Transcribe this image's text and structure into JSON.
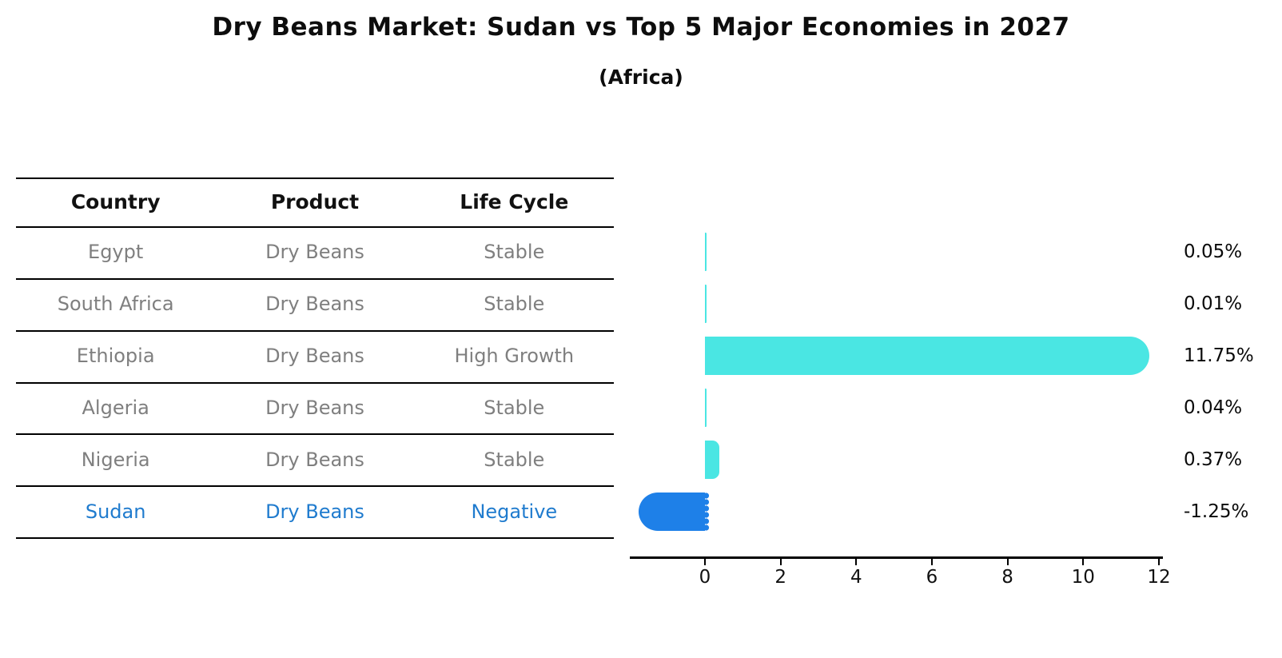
{
  "title": "Dry Beans Market: Sudan vs Top 5 Major Economies in 2027",
  "subtitle": "(Africa)",
  "table": {
    "headers": [
      "Country",
      "Product",
      "Life Cycle"
    ],
    "rows": [
      {
        "country": "Egypt",
        "product": "Dry Beans",
        "life_cycle": "Stable",
        "highlight": false
      },
      {
        "country": "South Africa",
        "product": "Dry Beans",
        "life_cycle": "Stable",
        "highlight": false
      },
      {
        "country": "Ethiopia",
        "product": "Dry Beans",
        "life_cycle": "High Growth",
        "highlight": false
      },
      {
        "country": "Algeria",
        "product": "Dry Beans",
        "life_cycle": "Stable",
        "highlight": false
      },
      {
        "country": "Nigeria",
        "product": "Dry Beans",
        "life_cycle": "Stable",
        "highlight": false
      },
      {
        "country": "Sudan",
        "product": "Dry Beans",
        "life_cycle": "Negative",
        "highlight": true
      }
    ]
  },
  "chart_data": {
    "type": "bar",
    "orientation": "horizontal",
    "title": "Dry Beans Market: Sudan vs Top 5 Major Economies in 2027",
    "subtitle": "(Africa)",
    "categories": [
      "Egypt",
      "South Africa",
      "Ethiopia",
      "Algeria",
      "Nigeria",
      "Sudan"
    ],
    "values": [
      0.05,
      0.01,
      11.75,
      0.04,
      0.37,
      -1.25
    ],
    "value_labels": [
      "0.05%",
      "0.01%",
      "11.75%",
      "0.04%",
      "0.37%",
      "-1.25%"
    ],
    "unit": "percent",
    "xlabel": "",
    "ylabel": "",
    "x_ticks": [
      0,
      2,
      4,
      6,
      8,
      10,
      12
    ],
    "xlim": [
      -2,
      12.3
    ],
    "grid": false,
    "legend_position": "none"
  },
  "colors": {
    "bar_positive": "#4AE6E3",
    "bar_negative": "#1E80E8",
    "highlight_text": "#1F7BCE",
    "table_text": "#7F7F7F",
    "header_text": "#111111",
    "axis": "#000000"
  }
}
